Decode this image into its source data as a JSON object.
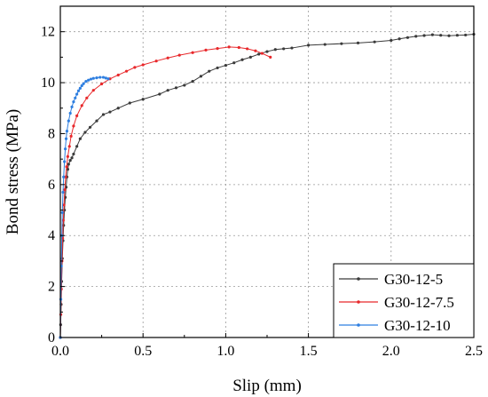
{
  "chart_data": {
    "type": "line",
    "title": "",
    "xlabel": "Slip (mm)",
    "ylabel": "Bond stress (MPa)",
    "xlim": [
      0,
      2.5
    ],
    "ylim": [
      0,
      13
    ],
    "xticks": [
      0.0,
      0.5,
      1.0,
      1.5,
      2.0,
      2.5
    ],
    "xtick_labels": [
      "0.0",
      "0.5",
      "1.0",
      "1.5",
      "2.0",
      "2.5"
    ],
    "yticks": [
      0,
      2,
      4,
      6,
      8,
      10,
      12
    ],
    "ytick_labels": [
      "0",
      "2",
      "4",
      "6",
      "8",
      "10",
      "12"
    ],
    "grid": true,
    "grid_style": "dotted",
    "legend_position": "bottom-right",
    "series": [
      {
        "name": "G30-12-5",
        "color": "#3a3a3a",
        "points": [
          [
            0.0,
            0.0
          ],
          [
            0.002,
            0.5
          ],
          [
            0.005,
            1.3
          ],
          [
            0.008,
            2.2
          ],
          [
            0.012,
            3.1
          ],
          [
            0.016,
            3.8
          ],
          [
            0.02,
            4.4
          ],
          [
            0.025,
            5.0
          ],
          [
            0.03,
            5.5
          ],
          [
            0.035,
            5.9
          ],
          [
            0.04,
            6.3
          ],
          [
            0.045,
            6.6
          ],
          [
            0.05,
            6.8
          ],
          [
            0.06,
            6.95
          ],
          [
            0.07,
            7.05
          ],
          [
            0.08,
            7.2
          ],
          [
            0.1,
            7.5
          ],
          [
            0.12,
            7.8
          ],
          [
            0.15,
            8.05
          ],
          [
            0.18,
            8.25
          ],
          [
            0.22,
            8.5
          ],
          [
            0.26,
            8.75
          ],
          [
            0.3,
            8.85
          ],
          [
            0.35,
            9.0
          ],
          [
            0.42,
            9.2
          ],
          [
            0.5,
            9.35
          ],
          [
            0.6,
            9.55
          ],
          [
            0.65,
            9.7
          ],
          [
            0.7,
            9.8
          ],
          [
            0.75,
            9.9
          ],
          [
            0.8,
            10.05
          ],
          [
            0.85,
            10.25
          ],
          [
            0.9,
            10.45
          ],
          [
            0.95,
            10.58
          ],
          [
            1.0,
            10.68
          ],
          [
            1.05,
            10.78
          ],
          [
            1.1,
            10.9
          ],
          [
            1.15,
            11.0
          ],
          [
            1.2,
            11.12
          ],
          [
            1.25,
            11.22
          ],
          [
            1.3,
            11.3
          ],
          [
            1.35,
            11.33
          ],
          [
            1.4,
            11.36
          ],
          [
            1.5,
            11.47
          ],
          [
            1.6,
            11.5
          ],
          [
            1.7,
            11.53
          ],
          [
            1.8,
            11.56
          ],
          [
            1.9,
            11.6
          ],
          [
            2.0,
            11.66
          ],
          [
            2.05,
            11.72
          ],
          [
            2.1,
            11.77
          ],
          [
            2.15,
            11.82
          ],
          [
            2.2,
            11.85
          ],
          [
            2.25,
            11.88
          ],
          [
            2.3,
            11.86
          ],
          [
            2.35,
            11.84
          ],
          [
            2.4,
            11.86
          ],
          [
            2.45,
            11.87
          ],
          [
            2.5,
            11.9
          ]
        ]
      },
      {
        "name": "G30-12-7.5",
        "color": "#e8282b",
        "points": [
          [
            0.0,
            0.0
          ],
          [
            0.003,
            0.9
          ],
          [
            0.006,
            1.9
          ],
          [
            0.01,
            3.0
          ],
          [
            0.014,
            3.9
          ],
          [
            0.018,
            4.6
          ],
          [
            0.022,
            5.2
          ],
          [
            0.027,
            5.8
          ],
          [
            0.032,
            6.3
          ],
          [
            0.038,
            6.7
          ],
          [
            0.045,
            7.1
          ],
          [
            0.055,
            7.5
          ],
          [
            0.065,
            7.9
          ],
          [
            0.08,
            8.3
          ],
          [
            0.1,
            8.7
          ],
          [
            0.13,
            9.1
          ],
          [
            0.16,
            9.4
          ],
          [
            0.2,
            9.7
          ],
          [
            0.25,
            9.95
          ],
          [
            0.3,
            10.15
          ],
          [
            0.35,
            10.3
          ],
          [
            0.4,
            10.45
          ],
          [
            0.45,
            10.6
          ],
          [
            0.5,
            10.7
          ],
          [
            0.58,
            10.85
          ],
          [
            0.65,
            10.97
          ],
          [
            0.72,
            11.08
          ],
          [
            0.8,
            11.18
          ],
          [
            0.88,
            11.28
          ],
          [
            0.95,
            11.34
          ],
          [
            1.02,
            11.4
          ],
          [
            1.08,
            11.38
          ],
          [
            1.13,
            11.33
          ],
          [
            1.18,
            11.25
          ],
          [
            1.22,
            11.15
          ],
          [
            1.27,
            11.0
          ]
        ]
      },
      {
        "name": "G30-12-10",
        "color": "#2f7fe0",
        "points": [
          [
            0.0,
            0.0
          ],
          [
            0.003,
            1.5
          ],
          [
            0.006,
            2.8
          ],
          [
            0.009,
            4.0
          ],
          [
            0.012,
            4.9
          ],
          [
            0.016,
            5.7
          ],
          [
            0.02,
            6.3
          ],
          [
            0.025,
            6.9
          ],
          [
            0.03,
            7.4
          ],
          [
            0.035,
            7.8
          ],
          [
            0.04,
            8.1
          ],
          [
            0.05,
            8.5
          ],
          [
            0.06,
            8.8
          ],
          [
            0.07,
            9.05
          ],
          [
            0.08,
            9.25
          ],
          [
            0.09,
            9.4
          ],
          [
            0.1,
            9.55
          ],
          [
            0.11,
            9.68
          ],
          [
            0.12,
            9.78
          ],
          [
            0.13,
            9.88
          ],
          [
            0.14,
            9.96
          ],
          [
            0.155,
            10.05
          ],
          [
            0.17,
            10.1
          ],
          [
            0.185,
            10.14
          ],
          [
            0.2,
            10.17
          ],
          [
            0.22,
            10.19
          ],
          [
            0.24,
            10.21
          ],
          [
            0.26,
            10.21
          ],
          [
            0.275,
            10.18
          ],
          [
            0.29,
            10.15
          ]
        ]
      }
    ]
  }
}
